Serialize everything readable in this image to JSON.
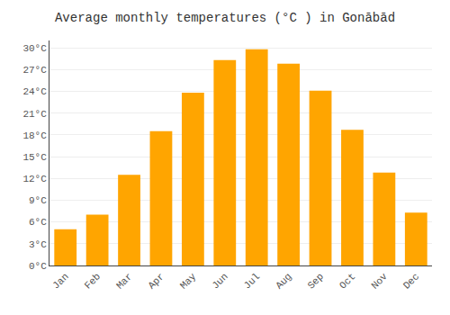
{
  "chart_data": {
    "type": "bar",
    "title": "Average monthly temperatures (°C ) in Gonābād",
    "categories": [
      "Jan",
      "Feb",
      "Mar",
      "Apr",
      "May",
      "Jun",
      "Jul",
      "Aug",
      "Sep",
      "Oct",
      "Nov",
      "Dec"
    ],
    "values": [
      5.0,
      7.0,
      12.5,
      18.5,
      23.8,
      28.3,
      29.8,
      27.8,
      24.1,
      18.7,
      12.8,
      7.3
    ],
    "color": "#FFA500",
    "ylim": [
      0,
      31
    ],
    "yticks": [
      {
        "value": 0,
        "label": "0°C"
      },
      {
        "value": 3,
        "label": "3°C"
      },
      {
        "value": 6,
        "label": "6°C"
      },
      {
        "value": 9,
        "label": "9°C"
      },
      {
        "value": 12,
        "label": "12°C"
      },
      {
        "value": 15,
        "label": "15°C"
      },
      {
        "value": 18,
        "label": "18°C"
      },
      {
        "value": 21,
        "label": "21°C"
      },
      {
        "value": 24,
        "label": "24°C"
      },
      {
        "value": 27,
        "label": "27°C"
      },
      {
        "value": 30,
        "label": "30°C"
      }
    ],
    "grid": true
  }
}
